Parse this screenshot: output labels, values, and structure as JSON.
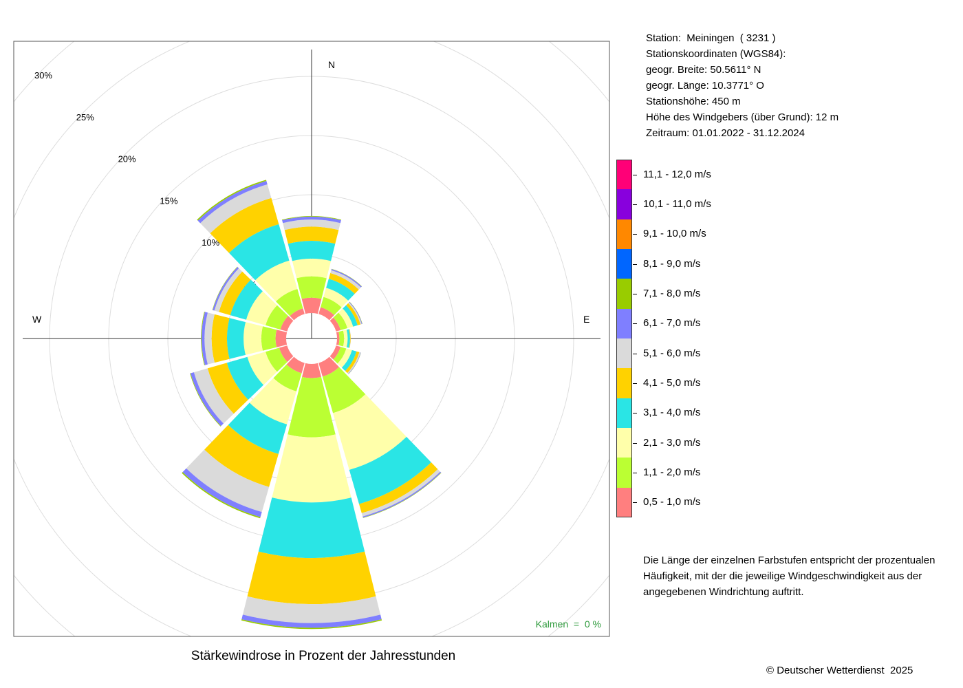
{
  "station_info": [
    "Station:  Meiningen  ( 3231 )",
    "Stationskoordinaten (WGS84):",
    "geogr. Breite: 50.5611° N",
    "geogr. Länge: 10.3771° O",
    "Stationshöhe: 450 m",
    "Höhe des Windgebers (über Grund): 12 m",
    "Zeitraum: 01.01.2022 - 31.12.2024"
  ],
  "caption": "Stärkewindrose in Prozent der Jahresstunden",
  "calm_text": "Kalmen  =  0 %",
  "note": "Die Länge der einzelnen Farbstufen entspricht der prozentualen Häufigkeit, mit der die jeweilige Windgeschwindigkeit aus der angegebenen Windrichtung auftritt.",
  "copyright": "© Deutscher Wetterdienst  2025",
  "chart_data": {
    "type": "wind-rose",
    "title": "Stärkewindrose in Prozent der Jahresstunden",
    "unit": "%",
    "radial_ticks": [
      5,
      10,
      15,
      20,
      25,
      30
    ],
    "radial_tick_labels": [
      "5%",
      "10%",
      "15%",
      "20%",
      "25%",
      "30%"
    ],
    "cardinals": {
      "N": "N",
      "E": "E",
      "W": "W"
    },
    "direction_step_deg": 30,
    "speed_bins": [
      {
        "label": "0,5 - 1,0 m/s",
        "color": "#ff7f7f"
      },
      {
        "label": "1,1 - 2,0 m/s",
        "color": "#bbff33"
      },
      {
        "label": "2,1 - 3,0 m/s",
        "color": "#ffffaa"
      },
      {
        "label": "3,1 - 4,0 m/s",
        "color": "#2ae5e5"
      },
      {
        "label": "4,1 - 5,0 m/s",
        "color": "#ffd200"
      },
      {
        "label": "5,1 - 6,0 m/s",
        "color": "#dadada"
      },
      {
        "label": "6,1 - 7,0 m/s",
        "color": "#7f7fff"
      },
      {
        "label": "7,1 - 8,0 m/s",
        "color": "#99cc00"
      },
      {
        "label": "8,1 - 9,0 m/s",
        "color": "#0066ff"
      },
      {
        "label": "9,1 - 10,0 m/s",
        "color": "#ff8800"
      },
      {
        "label": "10,1 - 11,0 m/s",
        "color": "#8800dd"
      },
      {
        "label": "11,1 - 12,0 m/s",
        "color": "#ff0077"
      }
    ],
    "sectors": [
      {
        "direction_deg": 0,
        "values": [
          1.3,
          1.8,
          1.5,
          1.5,
          1.2,
          0.6,
          0.25,
          0.05
        ]
      },
      {
        "direction_deg": 30,
        "values": [
          0.6,
          0.9,
          0.8,
          0.8,
          0.5,
          0.25,
          0.1,
          0.02
        ]
      },
      {
        "direction_deg": 60,
        "values": [
          0.4,
          0.6,
          0.5,
          0.4,
          0.25,
          0.1,
          0.05,
          0.02
        ]
      },
      {
        "direction_deg": 90,
        "values": [
          0.2,
          0.4,
          0.3,
          0.2,
          0.05,
          0.02,
          0.0,
          0.0
        ]
      },
      {
        "direction_deg": 120,
        "values": [
          0.4,
          0.5,
          0.5,
          0.4,
          0.25,
          0.1,
          0.03,
          0.01
        ]
      },
      {
        "direction_deg": 150,
        "values": [
          1.2,
          3.2,
          5.0,
          3.0,
          0.8,
          0.3,
          0.1,
          0.03
        ]
      },
      {
        "direction_deg": 180,
        "values": [
          1.2,
          5.0,
          5.5,
          4.7,
          3.9,
          1.6,
          0.4,
          0.1
        ]
      },
      {
        "direction_deg": 210,
        "values": [
          0.9,
          1.6,
          2.9,
          2.6,
          2.9,
          2.2,
          0.45,
          0.1
        ]
      },
      {
        "direction_deg": 240,
        "values": [
          0.7,
          1.2,
          1.6,
          1.8,
          1.7,
          1.2,
          0.3,
          0.05
        ]
      },
      {
        "direction_deg": 270,
        "values": [
          0.9,
          1.2,
          1.5,
          1.4,
          1.3,
          0.6,
          0.25,
          0.05
        ]
      },
      {
        "direction_deg": 300,
        "values": [
          0.6,
          1.3,
          1.7,
          1.4,
          1.0,
          0.4,
          0.15,
          0.03
        ]
      },
      {
        "direction_deg": 330,
        "values": [
          0.5,
          1.7,
          2.5,
          3.2,
          2.3,
          1.2,
          0.3,
          0.1
        ]
      }
    ]
  }
}
